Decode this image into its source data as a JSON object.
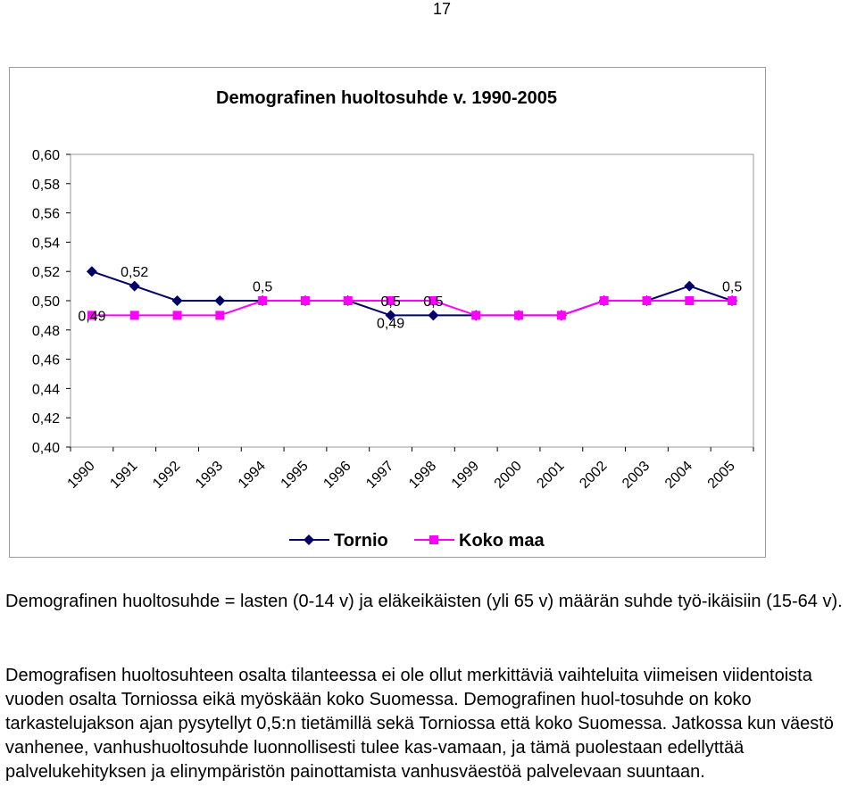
{
  "page_number": "17",
  "chart_data": {
    "type": "line",
    "title": "Demografinen huoltosuhde v. 1990-2005",
    "categories": [
      "1990",
      "1991",
      "1992",
      "1993",
      "1994",
      "1995",
      "1996",
      "1997",
      "1998",
      "1999",
      "2000",
      "2001",
      "2002",
      "2003",
      "2004",
      "2005"
    ],
    "y_ticks": [
      "0,40",
      "0,42",
      "0,44",
      "0,46",
      "0,48",
      "0,50",
      "0,52",
      "0,54",
      "0,56",
      "0,58",
      "0,60"
    ],
    "ylim": [
      0.4,
      0.6
    ],
    "grid": false,
    "legend_position": "bottom",
    "series": [
      {
        "name": "Tornio",
        "color": "#000066",
        "marker": "diamond",
        "values": [
          0.52,
          0.51,
          0.5,
          0.5,
          0.5,
          0.5,
          0.5,
          0.49,
          0.49,
          0.49,
          0.49,
          0.49,
          0.5,
          0.5,
          0.51,
          0.5
        ]
      },
      {
        "name": "Koko maa",
        "color": "#ff00ff",
        "marker": "square",
        "values": [
          0.49,
          0.49,
          0.49,
          0.49,
          0.5,
          0.5,
          0.5,
          0.5,
          0.5,
          0.49,
          0.49,
          0.49,
          0.5,
          0.5,
          0.5,
          0.5
        ]
      }
    ],
    "data_labels": [
      {
        "category": "1990",
        "value": 0.49,
        "text": "0,49"
      },
      {
        "category": "1991",
        "value": 0.52,
        "text": "0,52"
      },
      {
        "category": "1994",
        "value": 0.51,
        "text": "0,5"
      },
      {
        "category": "1997",
        "value": 0.485,
        "text": "0,49"
      },
      {
        "category": "1997",
        "value": 0.5,
        "text": "0,5"
      },
      {
        "category": "1998",
        "value": 0.5,
        "text": "0,5"
      },
      {
        "category": "2005",
        "value": 0.51,
        "text": "0,5"
      }
    ]
  },
  "paragraphs": [
    "Demografinen huoltosuhde = lasten (0-14 v) ja eläkeikäisten (yli 65 v) määrän suhde työ-ikäisiin (15-64 v).",
    "Demografisen huoltosuhteen osalta tilanteessa ei ole ollut merkittäviä vaihteluita viimeisen viidentoista vuoden osalta Torniossa eikä myöskään koko Suomessa. Demografinen huol-tosuhde on koko tarkastelujakson ajan pysytellyt 0,5:n tietämillä sekä Torniossa että koko Suomessa. Jatkossa kun väestö vanhenee, vanhushuoltosuhde luonnollisesti tulee kas-vamaan, ja tämä puolestaan edellyttää palvelukehityksen ja elinympäristön painottamista vanhusväestöä palvelevaan suuntaan."
  ]
}
